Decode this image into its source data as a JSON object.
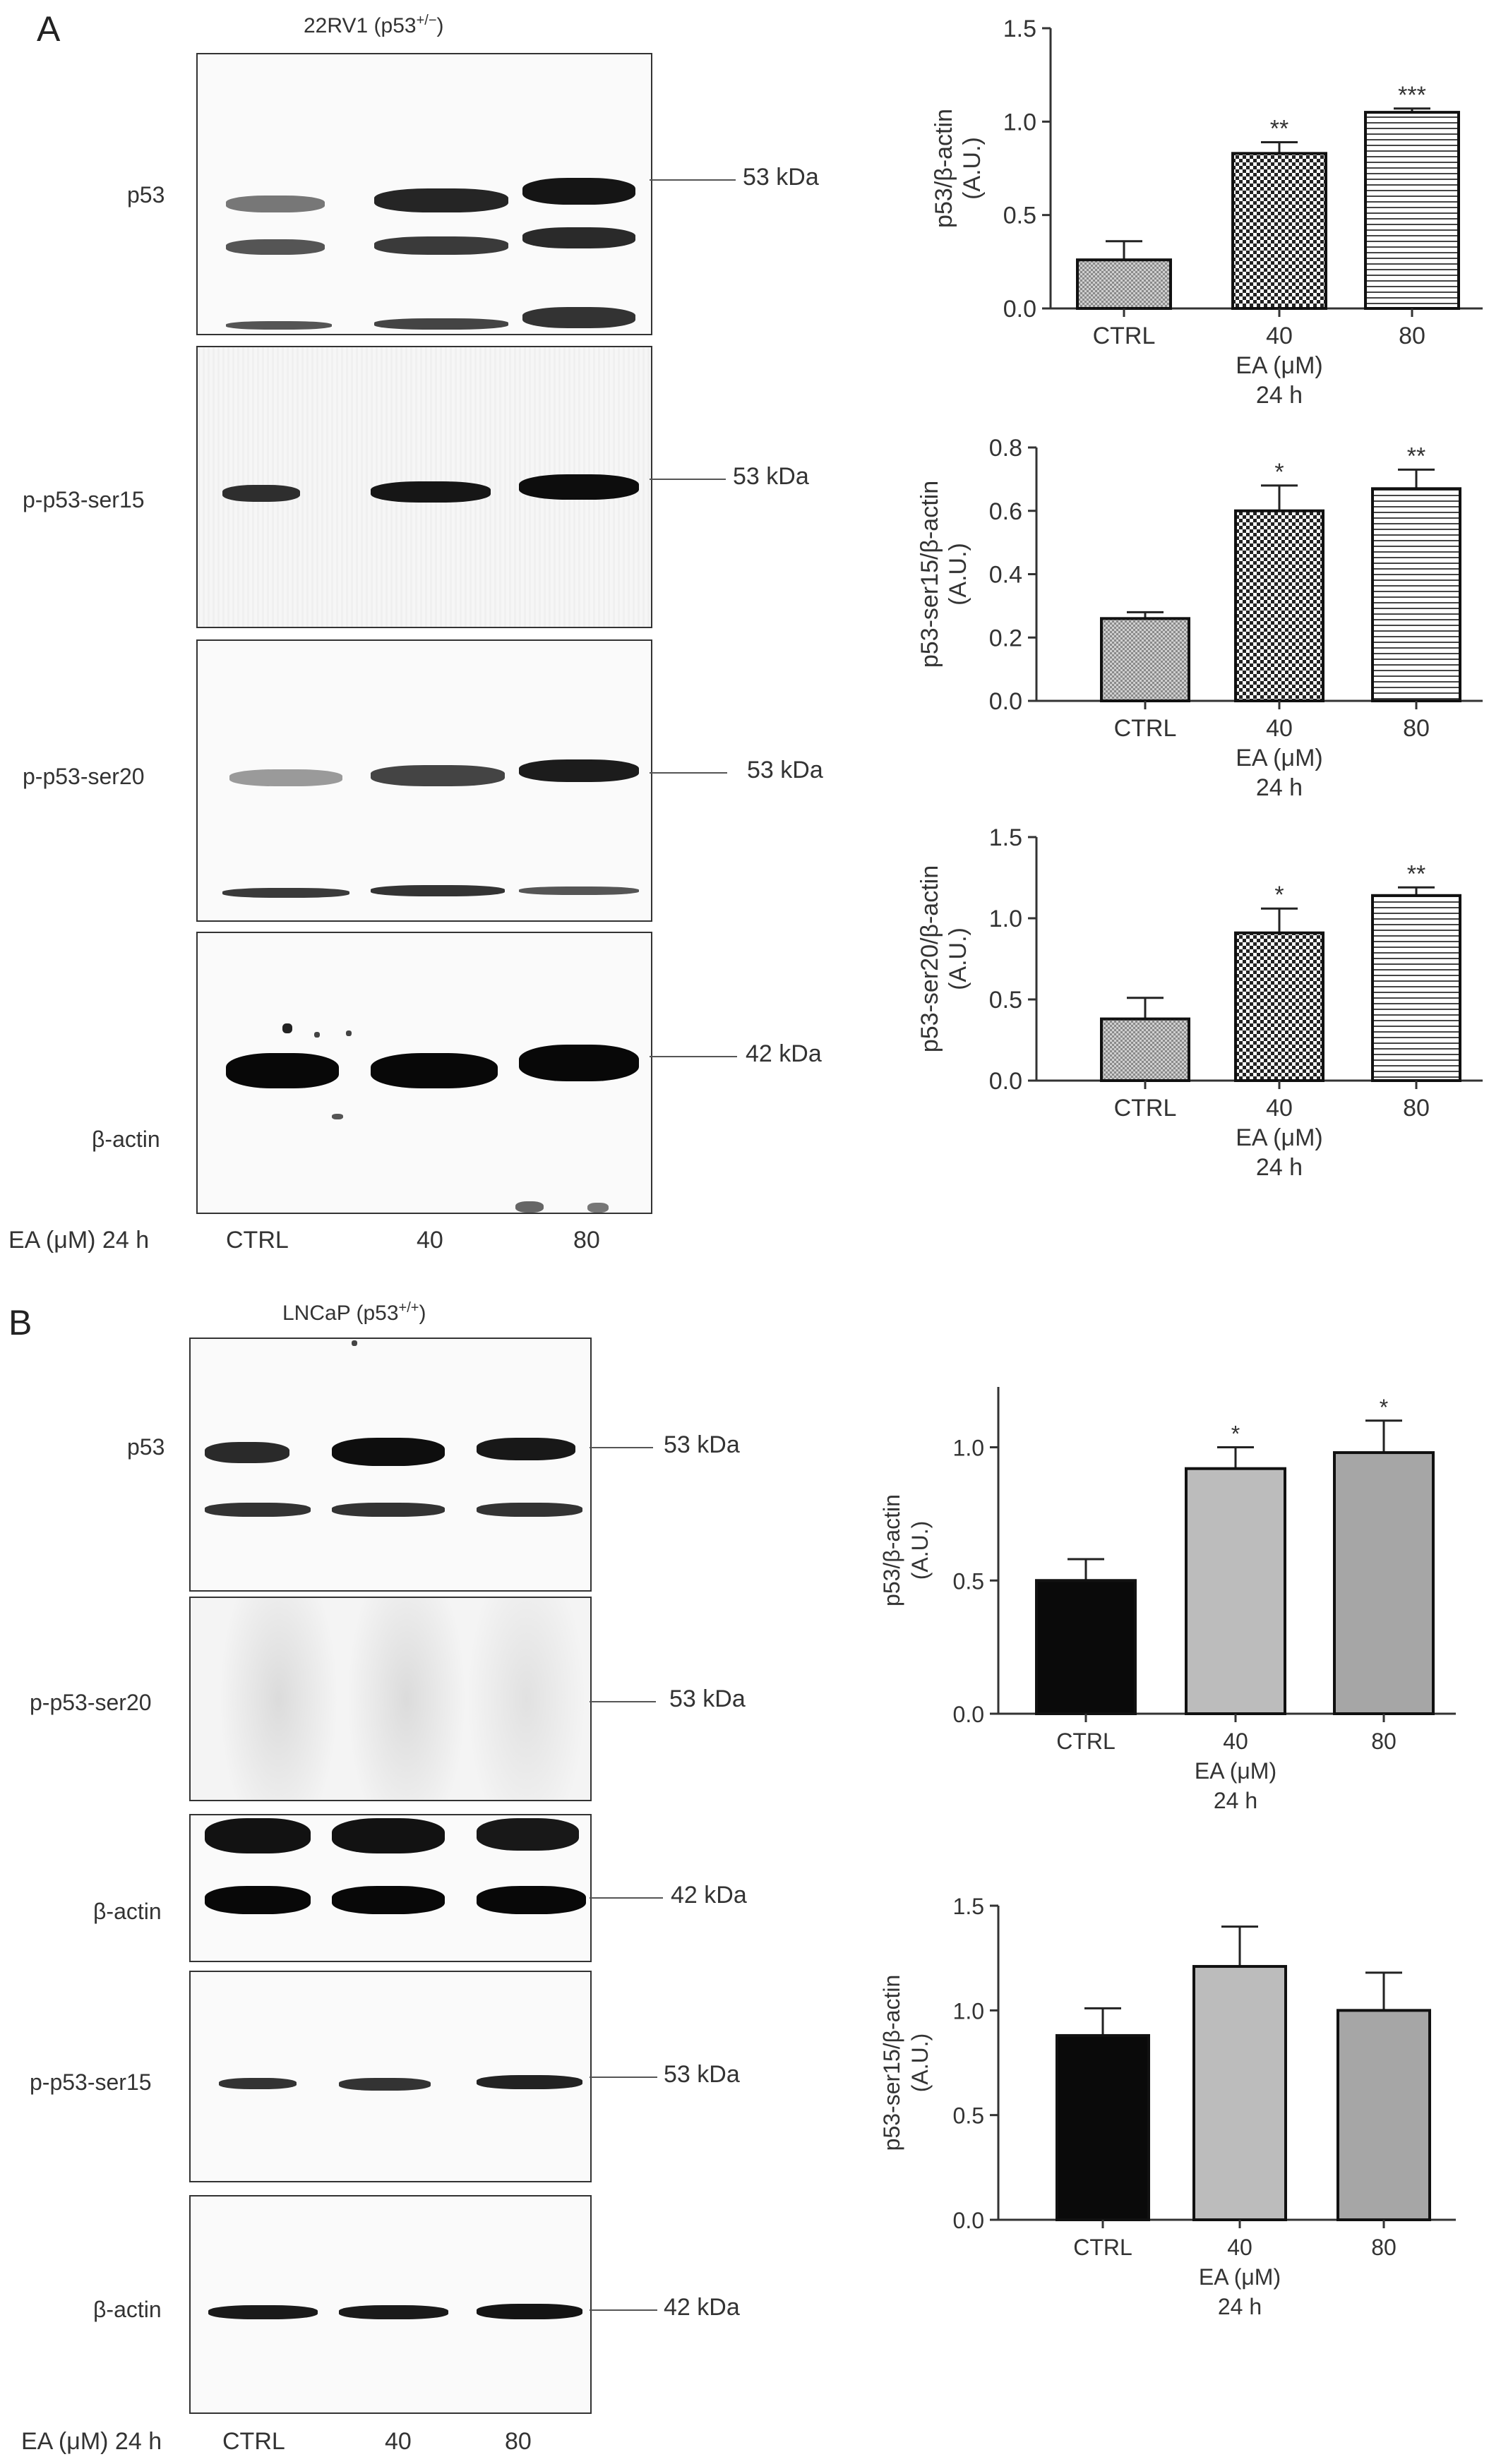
{
  "panel_a": {
    "letter": "A",
    "cell_line": "22RV1 (p53",
    "cell_sup": "+/−",
    "cell_close": ")",
    "rows": [
      "p53",
      "p-p53-ser15",
      "p-p53-ser20",
      "β-actin"
    ],
    "kda": [
      "53 kDa",
      "53 kDa",
      "53 kDa",
      "42 kDa"
    ],
    "lane_prefix": "EA (μM) 24 h",
    "lanes": [
      "CTRL",
      "40",
      "80"
    ]
  },
  "panel_b": {
    "letter": "B",
    "cell_line": "LNCaP (p53",
    "cell_sup": "+/+",
    "cell_close": ")",
    "rows": [
      "p53",
      "p-p53-ser20",
      "β-actin",
      "p-p53-ser15",
      "β-actin"
    ],
    "kda": [
      "53 kDa",
      "53 kDa",
      "42 kDa",
      "53 kDa",
      "42 kDa"
    ],
    "lane_prefix": "EA  (μM) 24 h",
    "lanes": [
      "CTRL",
      "40",
      "80"
    ]
  },
  "colors": {
    "axis": "#333333",
    "bar_ctrl_b": "#0a0a0a",
    "bar_40_b": "#bcbcbc",
    "bar_80_b": "#a6a6a6"
  },
  "chart_data": [
    {
      "type": "bar",
      "panel": "A",
      "categories": [
        "CTRL",
        "40",
        "80"
      ],
      "values": [
        0.26,
        0.83,
        1.05
      ],
      "errors": [
        0.1,
        0.06,
        0.02
      ],
      "significance": [
        "",
        "**",
        "***"
      ],
      "ylabel": "p53/β-actin",
      "ylabel2": "(A.U.)",
      "xlabel": "EA (μM)",
      "xlabel2": "24 h",
      "ylim": [
        0,
        1.5
      ],
      "yticks": [
        "0.0",
        "0.5",
        "1.0",
        "1.5"
      ],
      "patterns": [
        "fine",
        "check",
        "hline"
      ]
    },
    {
      "type": "bar",
      "panel": "A",
      "categories": [
        "CTRL",
        "40",
        "80"
      ],
      "values": [
        0.26,
        0.6,
        0.67
      ],
      "errors": [
        0.02,
        0.08,
        0.06
      ],
      "significance": [
        "",
        "*",
        "**"
      ],
      "ylabel": "p53-ser15/β-actin",
      "ylabel2": "(A.U.)",
      "xlabel": "EA (μM)",
      "xlabel2": "24 h",
      "ylim": [
        0,
        0.8
      ],
      "yticks": [
        "0.0",
        "0.2",
        "0.4",
        "0.6",
        "0.8"
      ],
      "patterns": [
        "fine",
        "check",
        "hline"
      ]
    },
    {
      "type": "bar",
      "panel": "A",
      "categories": [
        "CTRL",
        "40",
        "80"
      ],
      "values": [
        0.38,
        0.91,
        1.14
      ],
      "errors": [
        0.13,
        0.15,
        0.05
      ],
      "significance": [
        "",
        "*",
        "**"
      ],
      "ylabel": "p53-ser20/β-actin",
      "ylabel2": "(A.U.)",
      "xlabel": "EA (μM)",
      "xlabel2": "24 h",
      "ylim": [
        0,
        1.5
      ],
      "yticks": [
        "0.0",
        "0.5",
        "1.0",
        "1.5"
      ],
      "patterns": [
        "fine",
        "check",
        "hline"
      ]
    },
    {
      "type": "bar",
      "panel": "B",
      "categories": [
        "CTRL",
        "40",
        "80"
      ],
      "values": [
        0.5,
        0.92,
        0.98
      ],
      "errors": [
        0.08,
        0.08,
        0.12
      ],
      "significance": [
        "",
        "*",
        "*"
      ],
      "ylabel": "p53/β-actin",
      "ylabel2": "(A.U.)",
      "xlabel": "EA (μM)",
      "xlabel2": "24 h",
      "ylim": [
        0,
        1.2
      ],
      "yticks": [
        "0.0",
        "0.5",
        "1.0"
      ],
      "patterns": [
        "solid",
        "solid",
        "solid"
      ]
    },
    {
      "type": "bar",
      "panel": "B",
      "categories": [
        "CTRL",
        "40",
        "80"
      ],
      "values": [
        0.88,
        1.21,
        1.0
      ],
      "errors": [
        0.13,
        0.19,
        0.18
      ],
      "significance": [
        "",
        "",
        ""
      ],
      "ylabel": "p53-ser15/β-actin",
      "ylabel2": "(A.U.)",
      "xlabel": "EA (μM)",
      "xlabel2": "24 h",
      "ylim": [
        0,
        1.5
      ],
      "yticks": [
        "0.0",
        "0.5",
        "1.0",
        "1.5"
      ],
      "patterns": [
        "solid",
        "solid",
        "solid"
      ]
    }
  ]
}
